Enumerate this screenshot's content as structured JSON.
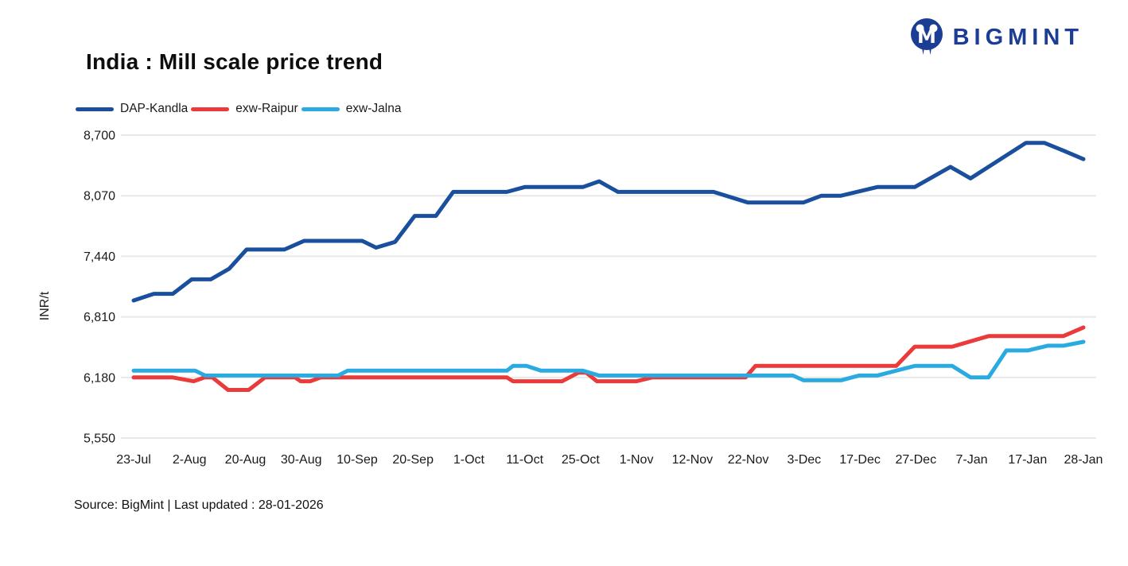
{
  "header": {
    "title": "India : Mill scale price trend",
    "brand_name": "BIGMINT"
  },
  "footer": {
    "source_line": "Source: BigMint | Last updated : 28-01-2026"
  },
  "colors": {
    "brand_blue": "#1b3e94",
    "grid": "#e8e8e8",
    "axis_text": "#1a1a1a",
    "series_dap_kandla": "#1a4f9d",
    "series_exw_raipur": "#ea3a3a",
    "series_exw_jalna": "#29abe2"
  },
  "chart_data": {
    "type": "line",
    "title": "India : Mill scale price trend",
    "xlabel": "",
    "ylabel": "INR/t",
    "ylim": [
      5550,
      8700
    ],
    "y_ticks": [
      "8,700",
      "8,070",
      "7,440",
      "6,810",
      "6,180",
      "5,550"
    ],
    "y_tick_values": [
      8700,
      8070,
      7440,
      6810,
      6180,
      5550
    ],
    "grid": "horizontal-only",
    "legend_position": "top-left",
    "x_tick_labels": [
      "23-Jul",
      "2-Aug",
      "20-Aug",
      "30-Aug",
      "10-Sep",
      "20-Sep",
      "1-Oct",
      "11-Oct",
      "25-Oct",
      "1-Nov",
      "12-Nov",
      "22-Nov",
      "3-Dec",
      "17-Dec",
      "27-Dec",
      "7-Jan",
      "17-Jan",
      "28-Jan"
    ],
    "series": [
      {
        "name": "DAP-Kandla",
        "color": "#1a4f9d",
        "points": [
          [
            0,
            6980
          ],
          [
            0.36,
            7050
          ],
          [
            0.7,
            7050
          ],
          [
            1.04,
            7200
          ],
          [
            1.38,
            7200
          ],
          [
            1.71,
            7310
          ],
          [
            2.02,
            7510
          ],
          [
            2.7,
            7510
          ],
          [
            3.05,
            7600
          ],
          [
            4.09,
            7600
          ],
          [
            4.34,
            7530
          ],
          [
            4.68,
            7590
          ],
          [
            5.03,
            7860
          ],
          [
            5.41,
            7860
          ],
          [
            5.72,
            8110
          ],
          [
            6.68,
            8110
          ],
          [
            7.0,
            8160
          ],
          [
            8.04,
            8160
          ],
          [
            8.33,
            8220
          ],
          [
            8.67,
            8110
          ],
          [
            10.38,
            8110
          ],
          [
            10.99,
            8000
          ],
          [
            11.99,
            8000
          ],
          [
            12.31,
            8070
          ],
          [
            12.66,
            8070
          ],
          [
            13.31,
            8160
          ],
          [
            13.98,
            8160
          ],
          [
            14.62,
            8370
          ],
          [
            14.98,
            8250
          ],
          [
            15.97,
            8620
          ],
          [
            16.3,
            8620
          ],
          [
            16.64,
            8540
          ],
          [
            17,
            8450
          ]
        ]
      },
      {
        "name": "exw-Raipur",
        "color": "#ea3a3a",
        "points": [
          [
            0,
            6180
          ],
          [
            0.7,
            6180
          ],
          [
            1.07,
            6140
          ],
          [
            1.27,
            6180
          ],
          [
            1.41,
            6180
          ],
          [
            1.69,
            6050
          ],
          [
            2.06,
            6050
          ],
          [
            2.35,
            6180
          ],
          [
            2.89,
            6180
          ],
          [
            2.99,
            6140
          ],
          [
            3.16,
            6140
          ],
          [
            3.35,
            6180
          ],
          [
            6.68,
            6180
          ],
          [
            6.79,
            6140
          ],
          [
            7.67,
            6140
          ],
          [
            7.96,
            6230
          ],
          [
            8.1,
            6230
          ],
          [
            8.29,
            6140
          ],
          [
            9.0,
            6140
          ],
          [
            9.28,
            6180
          ],
          [
            10.95,
            6180
          ],
          [
            11.13,
            6300
          ],
          [
            13.65,
            6300
          ],
          [
            13.98,
            6500
          ],
          [
            14.65,
            6500
          ],
          [
            15.3,
            6610
          ],
          [
            16.64,
            6610
          ],
          [
            17,
            6700
          ]
        ]
      },
      {
        "name": "exw-Jalna",
        "color": "#29abe2",
        "points": [
          [
            0,
            6250
          ],
          [
            1.1,
            6250
          ],
          [
            1.28,
            6200
          ],
          [
            3.66,
            6200
          ],
          [
            3.83,
            6250
          ],
          [
            6.68,
            6250
          ],
          [
            6.79,
            6300
          ],
          [
            7.03,
            6300
          ],
          [
            7.29,
            6250
          ],
          [
            8.04,
            6250
          ],
          [
            8.33,
            6200
          ],
          [
            11.8,
            6200
          ],
          [
            11.99,
            6150
          ],
          [
            12.66,
            6150
          ],
          [
            12.98,
            6200
          ],
          [
            13.31,
            6200
          ],
          [
            13.98,
            6300
          ],
          [
            14.65,
            6300
          ],
          [
            14.98,
            6180
          ],
          [
            15.3,
            6180
          ],
          [
            15.62,
            6460
          ],
          [
            16.0,
            6460
          ],
          [
            16.36,
            6510
          ],
          [
            16.64,
            6510
          ],
          [
            17,
            6550
          ]
        ]
      }
    ]
  }
}
